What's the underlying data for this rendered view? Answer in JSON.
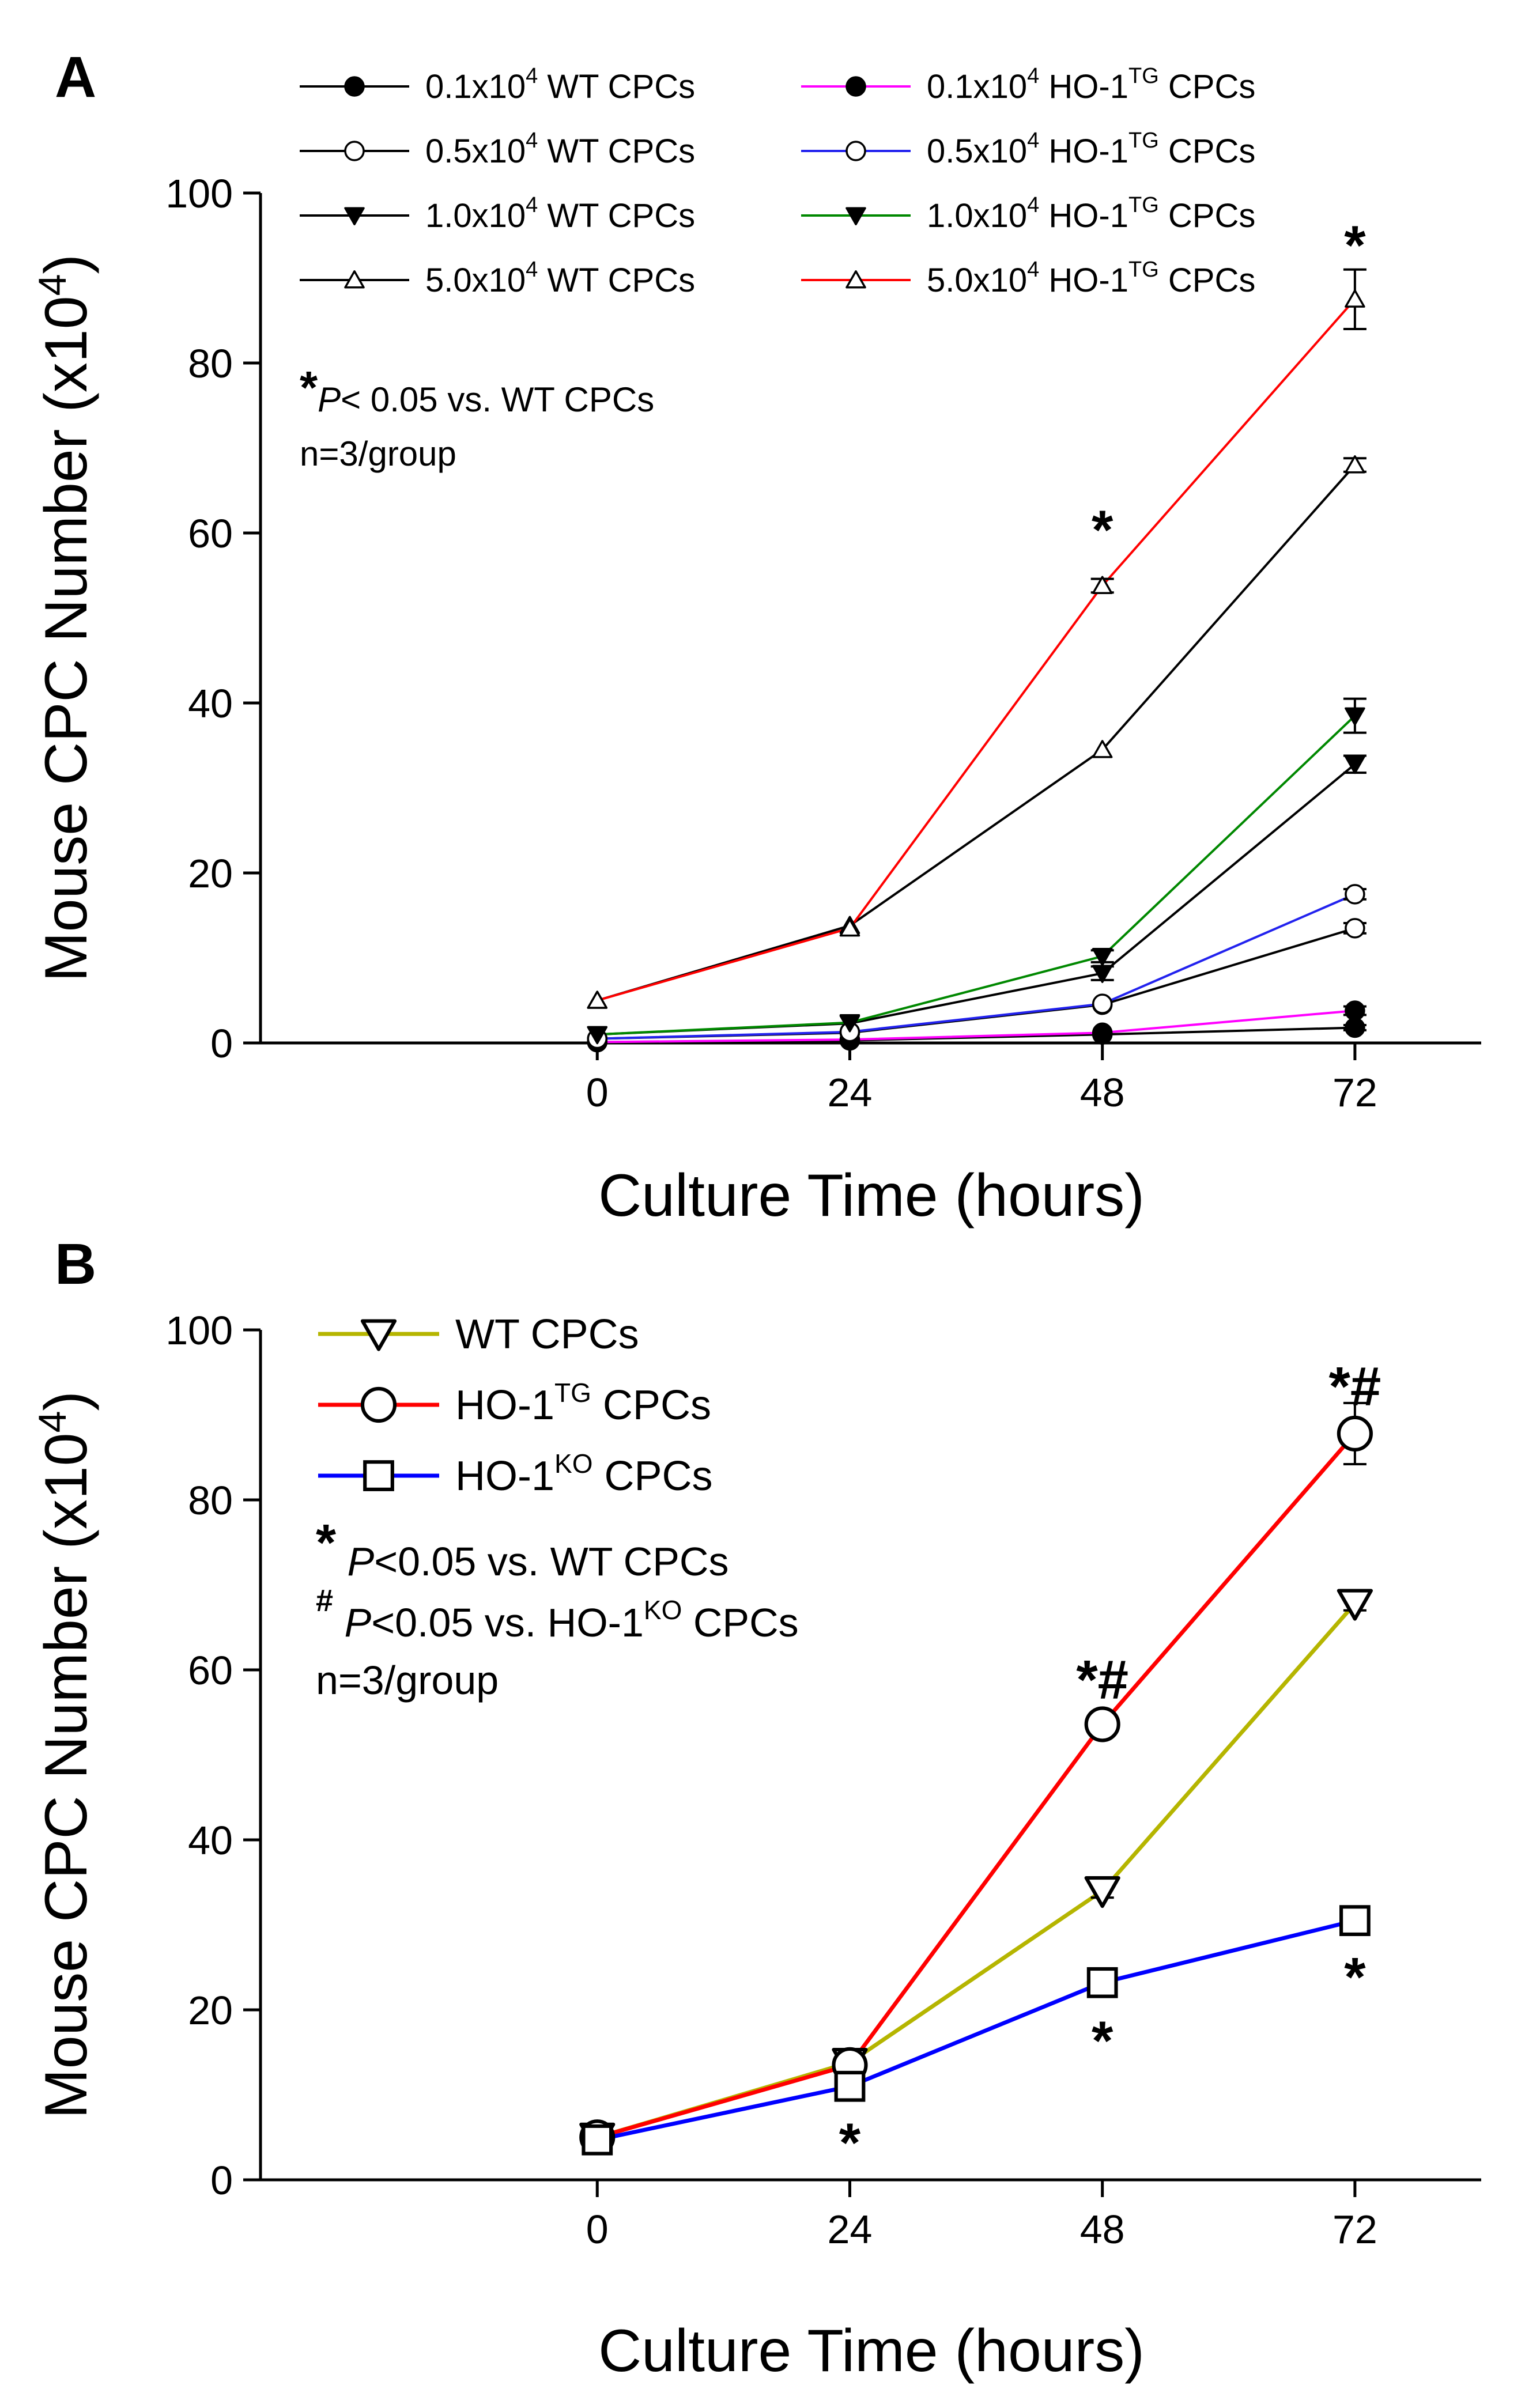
{
  "chart_data": [
    {
      "panel": "A",
      "type": "line",
      "xlabel": "Culture Time (hours)",
      "ylabel_prefix": "Mouse CPC Number (x10",
      "ylabel_sup": "4",
      "ylabel_suffix": ")",
      "x": [
        0,
        24,
        48,
        72
      ],
      "xlim": [
        -32,
        84
      ],
      "ylim": [
        0,
        100
      ],
      "xticks": [
        0,
        24,
        48,
        72
      ],
      "yticks": [
        0,
        20,
        40,
        60,
        80,
        100
      ],
      "series": [
        {
          "id": "wt01",
          "label_pre": "0.1x10",
          "label_sup": "4",
          "label_post": " WT CPCs",
          "color": "#000000",
          "marker": "circle-filled",
          "values": [
            0.1,
            0.3,
            1.0,
            1.8
          ],
          "errors": [
            0,
            0,
            0,
            0.3
          ]
        },
        {
          "id": "wt05",
          "label_pre": "0.5x10",
          "label_sup": "4",
          "label_post": " WT CPCs",
          "color": "#000000",
          "marker": "circle-open",
          "values": [
            0.5,
            1.2,
            4.5,
            13.5
          ],
          "errors": [
            0,
            0,
            0,
            0.6
          ]
        },
        {
          "id": "wt10",
          "label_pre": "1.0x10",
          "label_sup": "4",
          "label_post": " WT CPCs",
          "color": "#000000",
          "marker": "triangle-down-filled",
          "values": [
            1.0,
            2.3,
            8.2,
            32.8
          ],
          "errors": [
            0,
            0,
            0.8,
            1.0
          ]
        },
        {
          "id": "wt50",
          "label_pre": "5.0x10",
          "label_sup": "4",
          "label_post": " WT CPCs",
          "color": "#000000",
          "marker": "triangle-up-open",
          "values": [
            5.0,
            13.8,
            34.5,
            68.0
          ],
          "errors": [
            0,
            0,
            0,
            0.8
          ]
        },
        {
          "id": "tg01",
          "label_pre": "0.1x10",
          "label_sup": "4",
          "label_post": " HO-1",
          "label_sup2": "TG",
          "label_post2": " CPCs",
          "color": "#ff00ff",
          "marker": "circle-filled",
          "values": [
            0.1,
            0.4,
            1.2,
            3.8
          ],
          "errors": [
            0,
            0,
            0,
            0.5
          ]
        },
        {
          "id": "tg05",
          "label_pre": "0.5x10",
          "label_sup": "4",
          "label_post": " HO-1",
          "label_sup2": "TG",
          "label_post2": " CPCs",
          "color": "#2222ee",
          "marker": "circle-open",
          "values": [
            0.5,
            1.3,
            4.6,
            17.5
          ],
          "errors": [
            0,
            0,
            0,
            0.6
          ]
        },
        {
          "id": "tg10",
          "label_pre": "1.0x10",
          "label_sup": "4",
          "label_post": " HO-1",
          "label_sup2": "TG",
          "label_post2": " CPCs",
          "color": "#008800",
          "marker": "triangle-down-filled",
          "values": [
            1.0,
            2.4,
            10.2,
            38.5
          ],
          "errors": [
            0,
            0,
            0.7,
            2.0
          ]
        },
        {
          "id": "tg50",
          "label_pre": "5.0x10",
          "label_sup": "4",
          "label_post": " HO-1",
          "label_sup2": "TG",
          "label_post2": " CPCs",
          "color": "#ff0000",
          "marker": "triangle-up-open",
          "values": [
            5.0,
            13.5,
            53.8,
            87.5
          ],
          "errors": [
            0,
            0,
            0.8,
            3.5
          ]
        }
      ],
      "note_line1_star": "*",
      "note_line1_p": "P",
      "note_line1_rest": "< 0.05 vs. WT CPCs",
      "note_line2": "n=3/group",
      "annotations": [
        {
          "x": 48,
          "y": 60.5,
          "text": "*"
        },
        {
          "x": 72,
          "y": 94.0,
          "text": "*"
        }
      ]
    },
    {
      "panel": "B",
      "type": "line",
      "xlabel": "Culture Time (hours)",
      "ylabel_prefix": "Mouse CPC Number (x10",
      "ylabel_sup": "4",
      "ylabel_suffix": ")",
      "x": [
        0,
        24,
        48,
        72
      ],
      "xlim": [
        -32,
        84
      ],
      "ylim": [
        0,
        100
      ],
      "xticks": [
        0,
        24,
        48,
        72
      ],
      "yticks": [
        0,
        20,
        40,
        60,
        80,
        100
      ],
      "series": [
        {
          "id": "wt",
          "label_pre": "WT CPCs",
          "color": "#b5b500",
          "marker": "triangle-down-open",
          "values": [
            5.0,
            13.8,
            34.0,
            67.8
          ],
          "errors": [
            0,
            0,
            0.8,
            0.8
          ]
        },
        {
          "id": "tg",
          "label_pre": "HO-1",
          "label_sup": "TG",
          "label_post": " CPCs",
          "color": "#ff0000",
          "marker": "circle-open",
          "values": [
            5.0,
            13.5,
            53.6,
            87.8
          ],
          "errors": [
            0,
            0,
            0.8,
            3.6
          ]
        },
        {
          "id": "ko",
          "label_pre": "HO-1",
          "label_sup": "KO",
          "label_post": " CPCs",
          "color": "#0000ff",
          "marker": "square-open",
          "values": [
            4.7,
            11.0,
            23.2,
            30.5
          ],
          "errors": [
            0,
            0,
            0.8,
            0.8
          ]
        }
      ],
      "note_line1_star": "*",
      "note_line1_p": "P",
      "note_line1_rest": "<0.05 vs. WT CPCs",
      "note_line2_hash": "#",
      "note_line2_p": "P",
      "note_line2_rest": "<0.05 vs. HO-1",
      "note_line2_sup": "KO",
      "note_line2_post": " CPCs",
      "note_line3": "n=3/group",
      "annotations": [
        {
          "x": 48,
          "y": 59.0,
          "text": "*#"
        },
        {
          "x": 72,
          "y": 93.5,
          "text": "*#"
        },
        {
          "x": 24,
          "y": 4.5,
          "text": "*"
        },
        {
          "x": 48,
          "y": 16.5,
          "text": "*"
        },
        {
          "x": 72,
          "y": 24.0,
          "text": "*"
        }
      ]
    }
  ],
  "panels": {
    "a": "A",
    "b": "B"
  }
}
